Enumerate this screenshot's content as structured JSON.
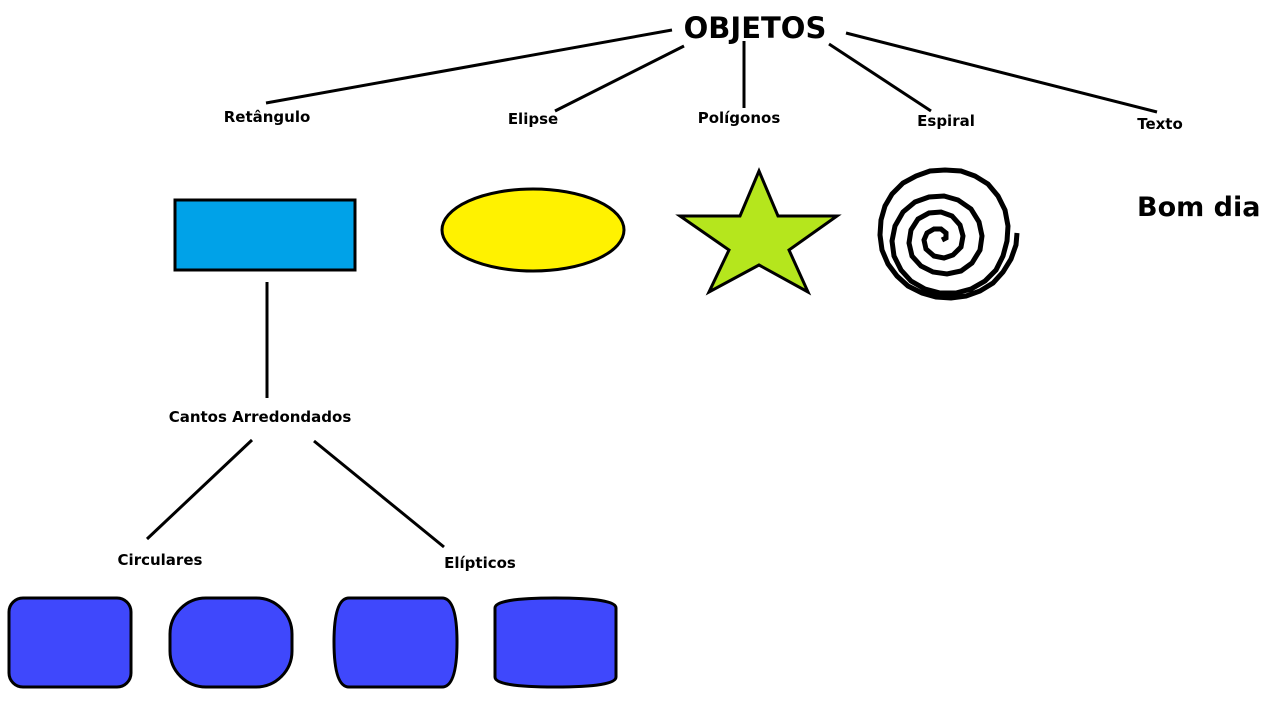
{
  "root": {
    "label": "OBJETOS"
  },
  "categories": {
    "rectangle": "Retângulo",
    "ellipse": "Elipse",
    "polygons": "Polígonos",
    "spiral": "Espiral",
    "text": "Texto"
  },
  "text_sample": "Bom dia",
  "rounded_corners": {
    "label": "Cantos Arredondados",
    "circular": "Circulares",
    "elliptical": "Elípticos"
  },
  "colors": {
    "rectangle_fill": "#00a2e8",
    "ellipse_fill": "#fff200",
    "star_fill": "#b5e61d",
    "rounded_fill": "#3f48fc",
    "stroke": "#000000"
  }
}
